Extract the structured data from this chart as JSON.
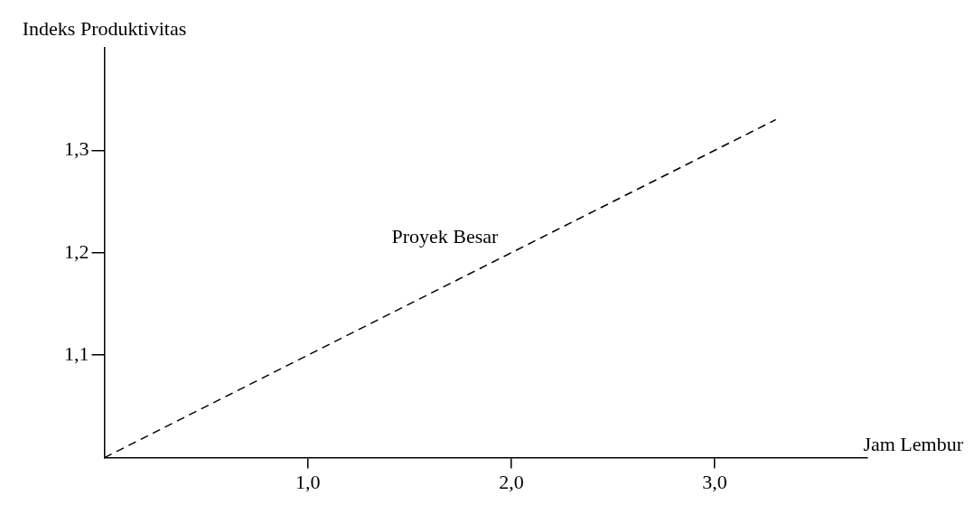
{
  "chart_data": {
    "type": "line",
    "xlabel": "Jam Lembur",
    "ylabel": "Indeks Produktivitas",
    "x": [
      0,
      3.3
    ],
    "series": [
      {
        "name": "Proyek Besar",
        "color": "#000000",
        "values": [
          1.0,
          1.33
        ]
      }
    ],
    "xlim": [
      0,
      3.75
    ],
    "ylim": [
      1.0,
      1.4
    ],
    "xticks": [
      {
        "value": 1,
        "label": "1,0"
      },
      {
        "value": 2,
        "label": "2,0"
      },
      {
        "value": 3,
        "label": "3,0"
      }
    ],
    "yticks": [
      {
        "value": 1.1,
        "label": "1,1"
      },
      {
        "value": 1.2,
        "label": "1,2"
      },
      {
        "value": 1.3,
        "label": "1,3"
      }
    ],
    "grid": false,
    "legend": false,
    "marker": "none",
    "line_style": "dashed"
  }
}
